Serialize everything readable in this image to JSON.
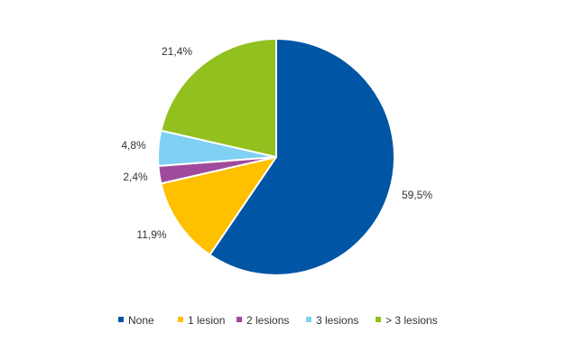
{
  "chart_data": {
    "type": "pie",
    "title": "",
    "start_angle_deg": 0,
    "direction": "clockwise",
    "slices": [
      {
        "name": "None",
        "value": 59.5,
        "label": "59,5%",
        "color": "#0055A4"
      },
      {
        "name": "1 lesion",
        "value": 11.9,
        "label": "11,9%",
        "color": "#FFC000"
      },
      {
        "name": "2 lesions",
        "value": 2.4,
        "label": "2,4%",
        "color": "#A14A9C"
      },
      {
        "name": "3 lesions",
        "value": 4.8,
        "label": "4,8%",
        "color": "#7FD0F3"
      },
      {
        "name": "> 3 lesions",
        "value": 21.4,
        "label": "21,4%",
        "color": "#92C01F"
      }
    ],
    "legend": {
      "position": "bottom",
      "marker": "square"
    }
  }
}
